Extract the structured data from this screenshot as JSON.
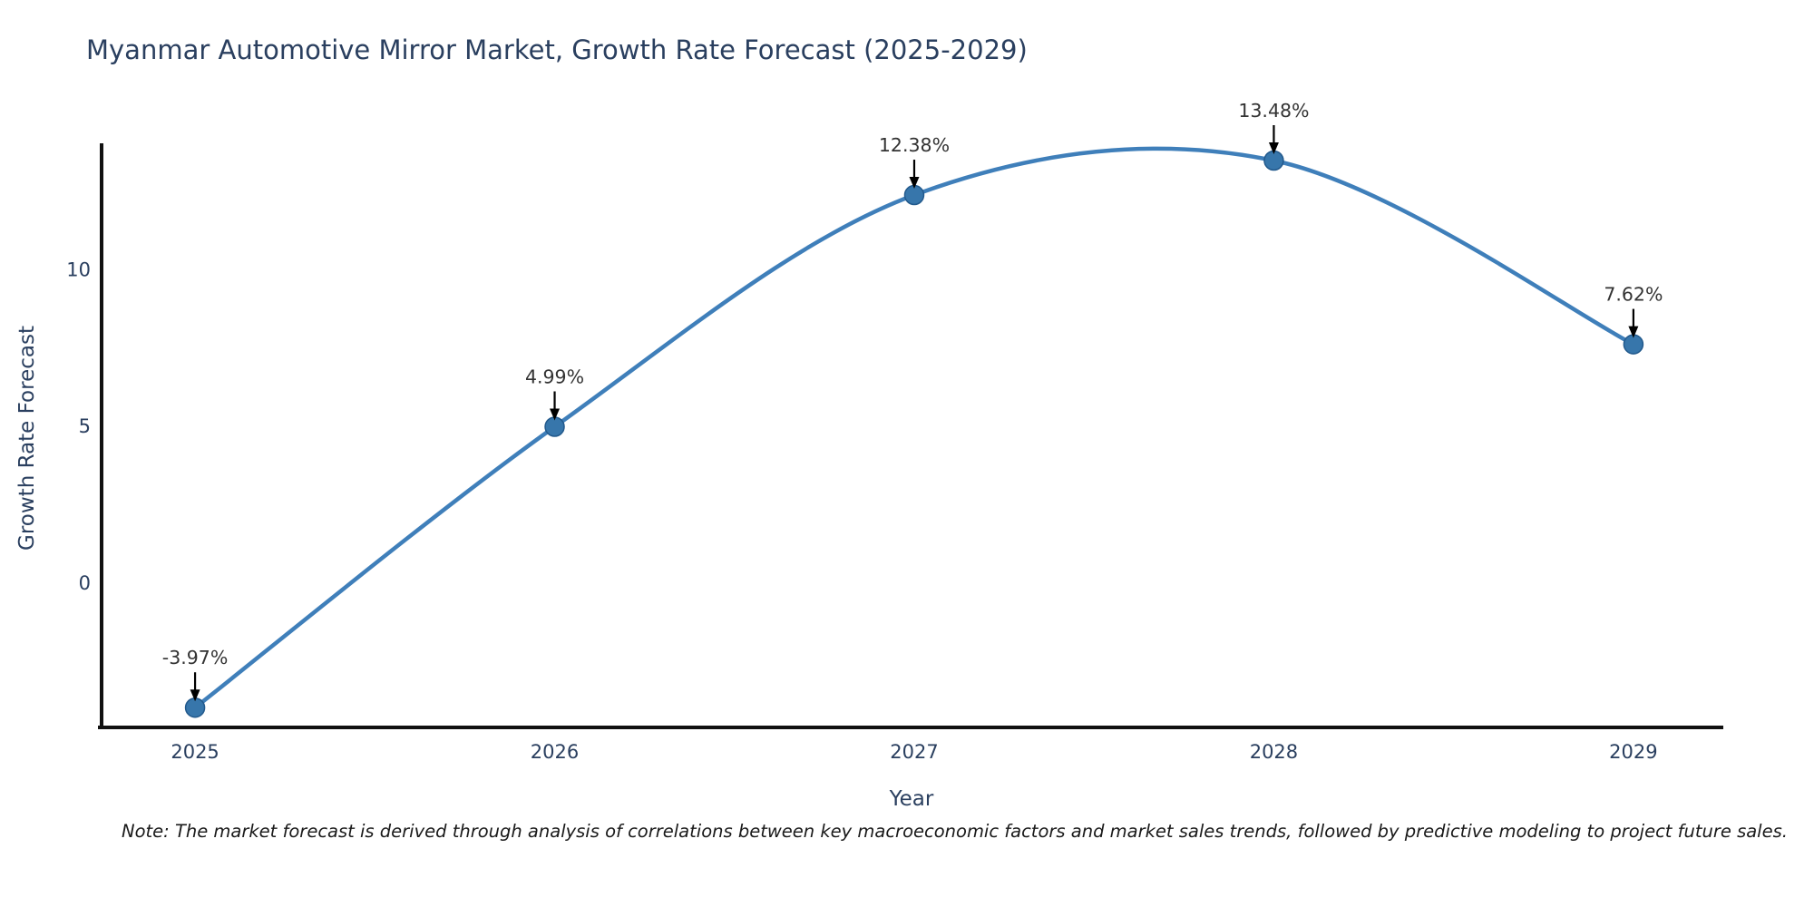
{
  "note": "Note: The market forecast is derived through analysis of correlations between key macroeconomic factors and market sales trends, followed by predictive modeling to project future sales.",
  "chart_data": {
    "type": "line",
    "title": "Myanmar Automotive Mirror Market, Growth Rate Forecast (2025-2029)",
    "xlabel": "Year",
    "ylabel": "Growth Rate Forecast",
    "categories": [
      2025,
      2026,
      2027,
      2028,
      2029
    ],
    "values": [
      -3.97,
      4.99,
      12.38,
      13.48,
      7.62
    ],
    "point_labels": [
      "-3.97%",
      "4.99%",
      "12.38%",
      "13.48%",
      "7.62%"
    ],
    "line_shape": "spline",
    "markers": true,
    "grid": false,
    "legend_position": "none",
    "xlim": [
      2024.74,
      2029.25
    ],
    "ylim": [
      -4.6,
      14.03
    ],
    "yticks": [
      0,
      5,
      10
    ],
    "xticks": [
      2025,
      2026,
      2027,
      2028,
      2029
    ],
    "colors": {
      "line": "#3f7fba",
      "marker_fill": "#3776ab",
      "marker_edge": "#22598c",
      "axis_line": "#111111",
      "tick_text": "#2a3f5f",
      "annotation_text": "#333333",
      "annotation_arrow": "#000000",
      "title_text": "#2a3f5f",
      "background": "#ffffff"
    }
  }
}
